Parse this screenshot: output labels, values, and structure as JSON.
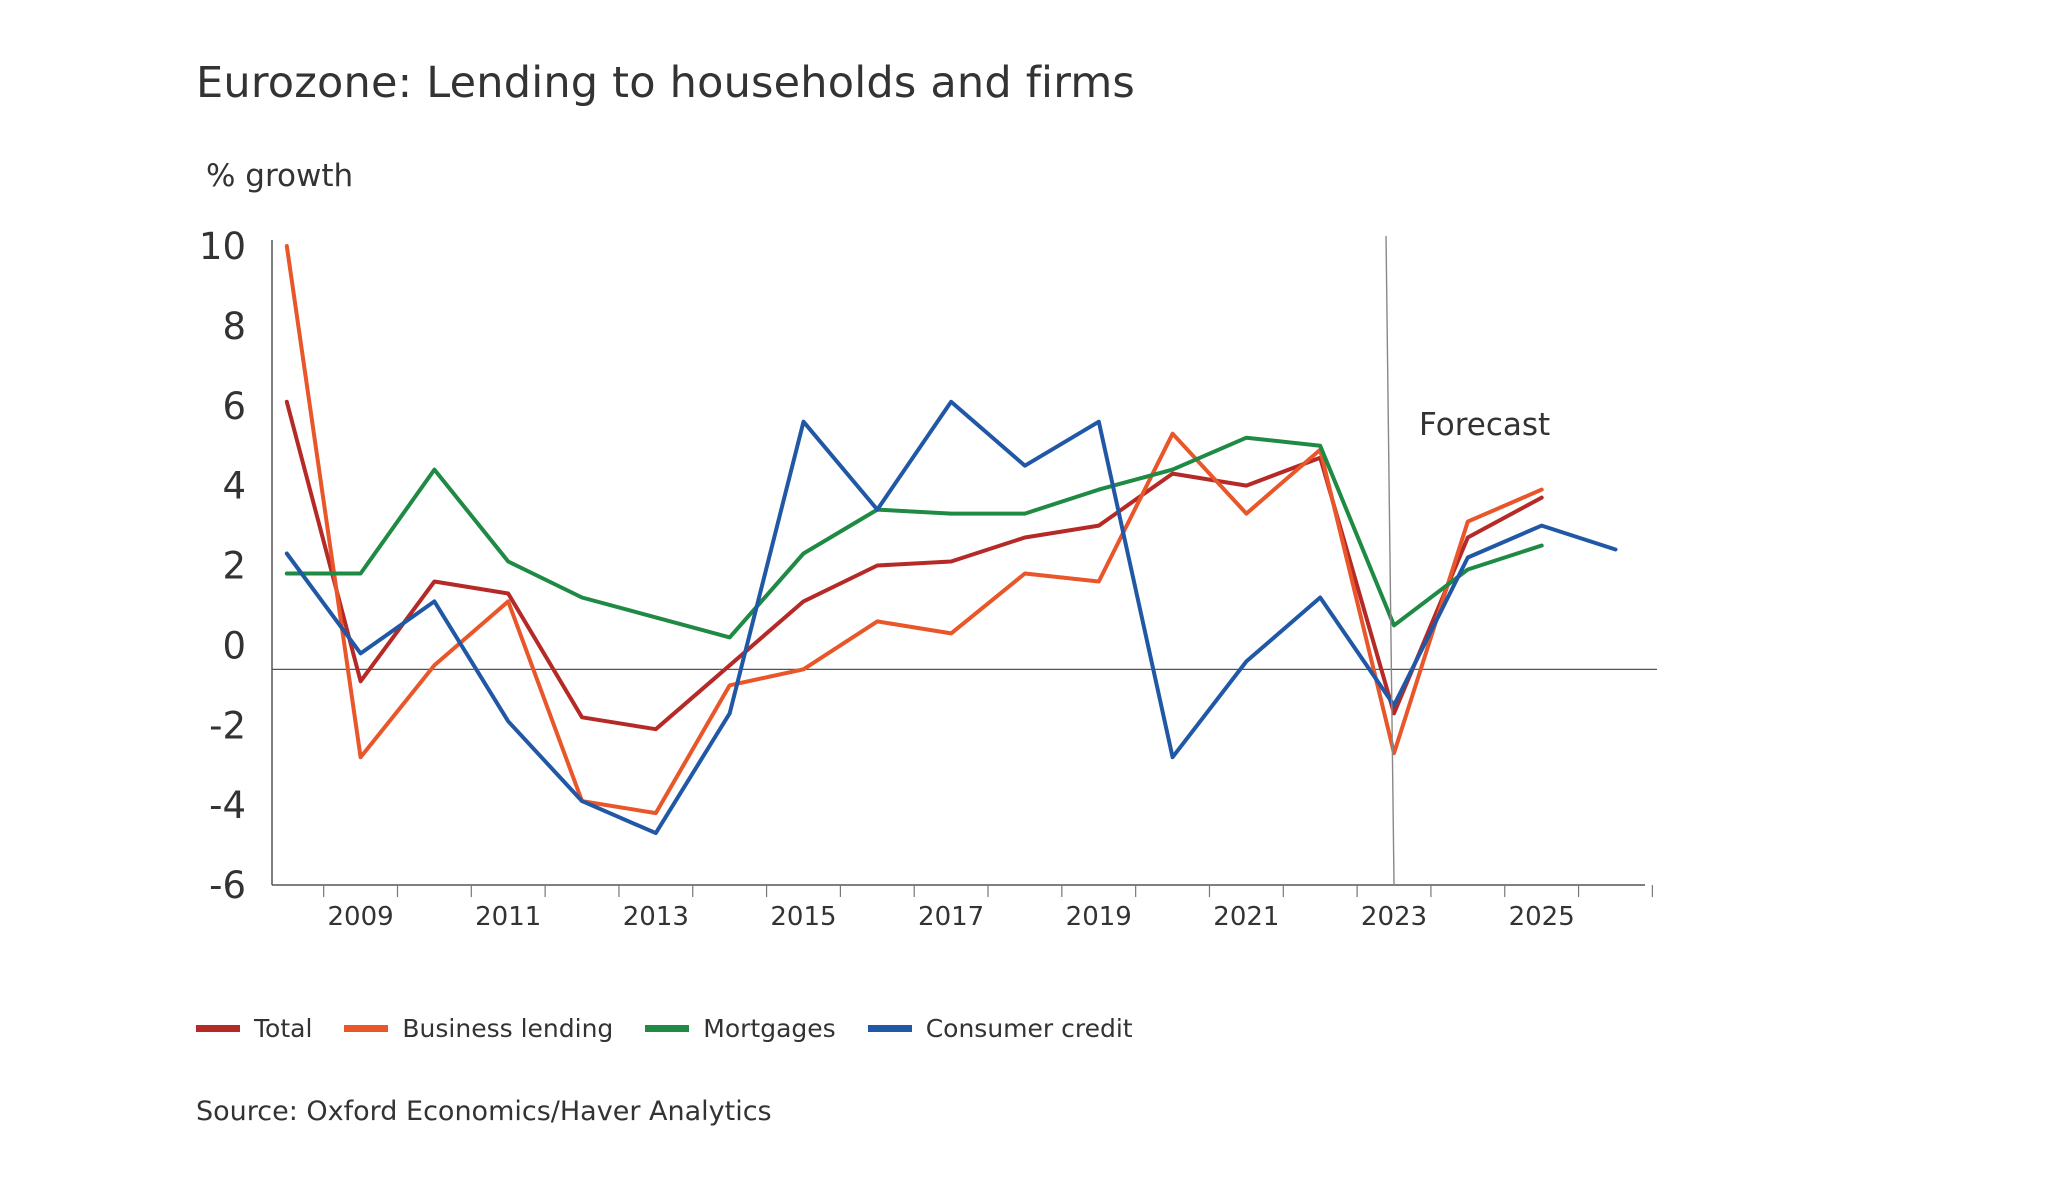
{
  "page": {
    "title": "Eurozone: Lending to households and firms",
    "ylabel": "% growth",
    "source": "Source: Oxford Economics/Haver Analytics"
  },
  "chart_data": {
    "type": "line",
    "title": "Eurozone: Lending to households and firms",
    "ylabel": "% growth",
    "xlabel": "",
    "ylim": [
      -6,
      10
    ],
    "xlim": [
      2007.8,
      2026.4
    ],
    "yticks": [
      "10",
      "8",
      "6",
      "4",
      "2",
      "0",
      "-2",
      "-4",
      "-6"
    ],
    "ytick_values": [
      10,
      8,
      6,
      4,
      2,
      0,
      -2,
      -4,
      -6
    ],
    "xtick_labels": [
      "2009",
      "2011",
      "2013",
      "2015",
      "2017",
      "2019",
      "2021",
      "2023",
      "2025"
    ],
    "xtick_values": [
      2009,
      2011,
      2013,
      2015,
      2017,
      2019,
      2021,
      2023,
      2025
    ],
    "reference_line_y": -0.6,
    "forecast_x": 2023,
    "forecast_label": "Forecast",
    "grid": false,
    "legend_position": "bottom-left",
    "series": [
      {
        "name": "Total",
        "color": "#b52a26",
        "points": [
          [
            2008,
            6.1
          ],
          [
            2009,
            -0.9
          ],
          [
            2010,
            1.6
          ],
          [
            2011,
            1.3
          ],
          [
            2012,
            -1.8
          ],
          [
            2013,
            -2.1
          ],
          [
            2014,
            -0.5
          ],
          [
            2015,
            1.1
          ],
          [
            2016,
            2.0
          ],
          [
            2017,
            2.1
          ],
          [
            2018,
            2.7
          ],
          [
            2019,
            3.0
          ],
          [
            2020,
            4.3
          ],
          [
            2021,
            4.0
          ],
          [
            2022,
            4.7
          ],
          [
            2023,
            -1.7
          ],
          [
            2024,
            2.7
          ],
          [
            2025,
            3.7
          ]
        ]
      },
      {
        "name": "Business lending",
        "color": "#e8562a",
        "points": [
          [
            2008,
            10.0
          ],
          [
            2009,
            -2.8
          ],
          [
            2010,
            -0.5
          ],
          [
            2011,
            1.1
          ],
          [
            2012,
            -3.9
          ],
          [
            2013,
            -4.2
          ],
          [
            2014,
            -1.0
          ],
          [
            2015,
            -0.6
          ],
          [
            2016,
            0.6
          ],
          [
            2017,
            0.3
          ],
          [
            2018,
            1.8
          ],
          [
            2019,
            1.6
          ],
          [
            2020,
            5.3
          ],
          [
            2021,
            3.3
          ],
          [
            2022,
            4.9
          ],
          [
            2023,
            -2.7
          ],
          [
            2024,
            3.1
          ],
          [
            2025,
            3.9
          ]
        ]
      },
      {
        "name": "Mortgages",
        "color": "#1e8a44",
        "points": [
          [
            2008,
            1.8
          ],
          [
            2009,
            1.8
          ],
          [
            2010,
            4.4
          ],
          [
            2011,
            2.1
          ],
          [
            2012,
            1.2
          ],
          [
            2013,
            0.7
          ],
          [
            2014,
            0.2
          ],
          [
            2015,
            2.3
          ],
          [
            2016,
            3.4
          ],
          [
            2017,
            3.3
          ],
          [
            2018,
            3.3
          ],
          [
            2019,
            3.9
          ],
          [
            2020,
            4.4
          ],
          [
            2021,
            5.2
          ],
          [
            2022,
            5.0
          ],
          [
            2023,
            0.5
          ],
          [
            2024,
            1.9
          ],
          [
            2025,
            2.5
          ]
        ]
      },
      {
        "name": "Consumer credit",
        "color": "#2158a6",
        "points": [
          [
            2008,
            2.3
          ],
          [
            2009,
            -0.2
          ],
          [
            2010,
            1.1
          ],
          [
            2011,
            -1.9
          ],
          [
            2012,
            -3.9
          ],
          [
            2013,
            -4.7
          ],
          [
            2014,
            -1.7
          ],
          [
            2015,
            5.6
          ],
          [
            2016,
            3.4
          ],
          [
            2017,
            6.1
          ],
          [
            2018,
            4.5
          ],
          [
            2019,
            5.6
          ],
          [
            2020,
            -2.8
          ],
          [
            2021,
            -0.4
          ],
          [
            2022,
            1.2
          ],
          [
            2023,
            -1.5
          ],
          [
            2024,
            2.2
          ],
          [
            2025,
            3.0
          ],
          [
            2026,
            2.4
          ]
        ]
      }
    ]
  }
}
